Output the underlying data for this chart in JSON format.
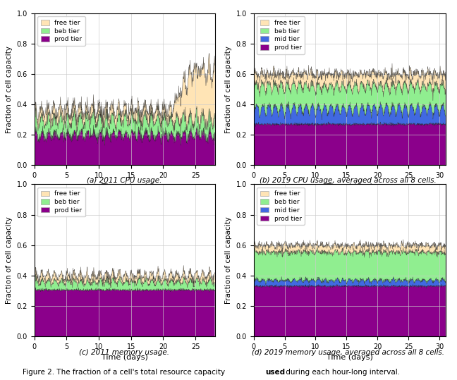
{
  "ylabel": "Fraction of cell capacity",
  "xlabel": "Time (days)",
  "background_color": "#ffffff",
  "grid_color": "#cccccc",
  "color_prod": "#8B008B",
  "color_mid": "#4169E1",
  "color_beb": "#90EE90",
  "color_free": "#FFE4B5",
  "subplots": [
    {
      "id": "a",
      "caption": "(a) 2011 CPU usage.",
      "days": 28,
      "xlim": [
        0,
        28
      ],
      "xticks": [
        0,
        5,
        10,
        15,
        20,
        25
      ],
      "tiers": [
        "prod",
        "beb",
        "free"
      ],
      "prod_base": 0.2,
      "prod_noise": 0.018,
      "beb_base": 0.1,
      "beb_noise": 0.018,
      "free_base": 0.06,
      "free_noise": 0.015,
      "spike_day": 21,
      "spike_max": 0.28
    },
    {
      "id": "b",
      "caption": "(b) 2019 CPU usage, averaged across all 8 cells.",
      "days": 31,
      "xlim": [
        0,
        31
      ],
      "xticks": [
        0,
        5,
        10,
        15,
        20,
        25,
        30
      ],
      "tiers": [
        "prod",
        "mid",
        "beb",
        "free"
      ],
      "prod_base": 0.27,
      "prod_noise": 0.005,
      "mid_base": 0.05,
      "mid_osc": 0.08,
      "mid_noise": 0.008,
      "beb_base": 0.15,
      "beb_noise": 0.01,
      "free_base": 0.08,
      "free_noise": 0.015
    },
    {
      "id": "c",
      "caption": "(c) 2011 memory usage.",
      "days": 28,
      "xlim": [
        0,
        28
      ],
      "xticks": [
        0,
        5,
        10,
        15,
        20,
        25
      ],
      "tiers": [
        "prod",
        "beb",
        "free"
      ],
      "prod_base": 0.305,
      "prod_noise": 0.005,
      "beb_base": 0.055,
      "beb_noise": 0.012,
      "free_base": 0.04,
      "free_noise": 0.01
    },
    {
      "id": "d",
      "caption": "(d) 2019 memory usage, averaged across all 8 cells.",
      "days": 31,
      "xlim": [
        0,
        31
      ],
      "xticks": [
        0,
        5,
        10,
        15,
        20,
        25,
        30
      ],
      "tiers": [
        "prod",
        "mid",
        "beb",
        "free"
      ],
      "prod_base": 0.33,
      "prod_noise": 0.004,
      "mid_base": 0.025,
      "mid_osc": 0.02,
      "mid_noise": 0.005,
      "beb_base": 0.185,
      "beb_noise": 0.008,
      "free_base": 0.045,
      "free_noise": 0.008
    }
  ]
}
